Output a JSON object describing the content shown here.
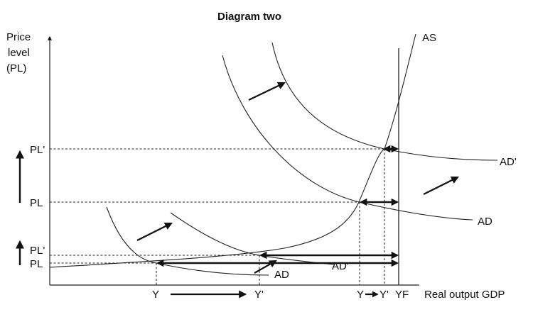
{
  "title": "Diagram two",
  "y_axis_label": [
    "Price",
    "level",
    "(PL)"
  ],
  "x_axis_label": "Real output GDP",
  "price_ticks": {
    "pl_prime_upper": "PL'",
    "pl_upper": "PL",
    "pl_prime_lower": "PL'",
    "pl_lower": "PL"
  },
  "output_ticks": {
    "y_left": "Y",
    "y_prime_left": "Y'",
    "y_right": "Y",
    "y_prime_right": "Y'",
    "yf": "YF"
  },
  "curve_labels": {
    "as": "AS",
    "ad_prime_upper": "AD'",
    "ad_upper": "AD",
    "ad_lower": "AD",
    "ad_prime_lower": "AD'"
  }
}
